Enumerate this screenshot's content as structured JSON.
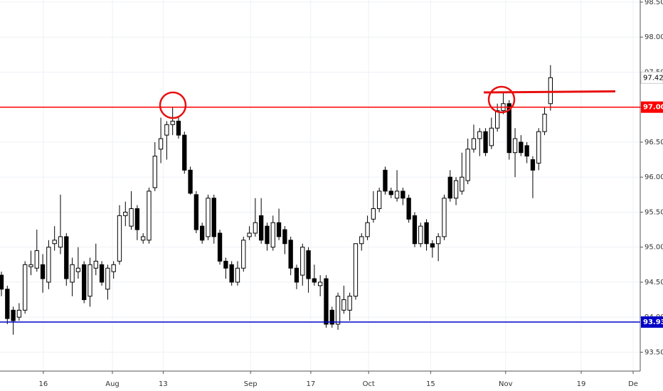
{
  "chart_data": {
    "type": "candlestick",
    "open": [
      94.6,
      94.4,
      94.1,
      94.0,
      94.1,
      94.72,
      94.7,
      94.75,
      94.5,
      95.05,
      95.0,
      95.15,
      94.5,
      94.65,
      94.75,
      94.3,
      94.7,
      94.75,
      94.4,
      94.65,
      94.8,
      95.45,
      95.3,
      95.55,
      95.1,
      95.1,
      95.85,
      96.4,
      96.6,
      96.75,
      96.8,
      96.6,
      96.1,
      95.75,
      95.3,
      95.15,
      95.7,
      95.2,
      94.8,
      94.75,
      94.5,
      94.7,
      95.15,
      95.2,
      95.45,
      95.3,
      95.0,
      95.35,
      95.25,
      95.1,
      94.7,
      94.6,
      94.95,
      94.55,
      94.45,
      94.55,
      94.1,
      93.9,
      94.1,
      94.1,
      94.3,
      95.05,
      95.15,
      95.4,
      95.55,
      96.1,
      95.8,
      95.7,
      95.8,
      95.7,
      95.45,
      95.05,
      95.35,
      95.05,
      95.05,
      95.15,
      96.0,
      95.7,
      95.8,
      95.95,
      96.4,
      96.55,
      96.65,
      96.45,
      96.7,
      96.95,
      97.05,
      96.35,
      96.5,
      96.45,
      96.25,
      96.2,
      96.65,
      97.05
    ],
    "high": [
      94.65,
      94.45,
      94.15,
      94.2,
      94.8,
      94.95,
      95.25,
      94.9,
      95.1,
      95.3,
      95.75,
      95.2,
      94.85,
      95.0,
      94.8,
      94.85,
      95.05,
      94.8,
      94.75,
      94.8,
      95.6,
      95.65,
      95.8,
      95.6,
      95.2,
      95.85,
      96.5,
      96.85,
      96.8,
      97.0,
      96.85,
      96.65,
      96.15,
      95.8,
      95.35,
      95.75,
      95.75,
      95.25,
      94.85,
      94.8,
      94.8,
      95.15,
      95.3,
      95.7,
      95.7,
      95.35,
      95.45,
      95.55,
      95.3,
      95.15,
      94.75,
      95.05,
      95.0,
      94.75,
      94.6,
      94.6,
      94.15,
      94.35,
      94.45,
      94.35,
      95.05,
      95.2,
      95.45,
      95.8,
      95.85,
      96.15,
      95.85,
      96.1,
      95.85,
      95.75,
      95.5,
      95.35,
      95.4,
      95.1,
      95.2,
      95.75,
      96.1,
      96.0,
      96.35,
      96.55,
      96.75,
      96.7,
      96.7,
      96.85,
      97.05,
      97.2,
      97.1,
      96.7,
      96.6,
      96.5,
      96.3,
      96.7,
      97.0,
      97.6
    ],
    "low": [
      94.3,
      93.9,
      93.75,
      93.95,
      94.05,
      94.6,
      94.65,
      94.35,
      94.4,
      94.95,
      94.9,
      94.45,
      94.3,
      94.55,
      94.2,
      94.15,
      94.6,
      94.45,
      94.25,
      94.55,
      94.75,
      95.3,
      95.25,
      95.1,
      95.05,
      95.05,
      95.8,
      96.2,
      96.25,
      96.6,
      96.55,
      96.05,
      95.75,
      95.2,
      95.05,
      95.1,
      95.05,
      94.75,
      94.55,
      94.45,
      94.45,
      94.65,
      95.1,
      95.15,
      95.05,
      94.95,
      94.95,
      95.1,
      94.9,
      94.6,
      94.4,
      94.45,
      94.35,
      94.45,
      94.3,
      93.85,
      93.85,
      93.82,
      94.05,
      93.95,
      94.25,
      94.95,
      95.1,
      95.35,
      95.5,
      95.75,
      95.7,
      95.65,
      95.6,
      95.35,
      95.0,
      95.0,
      94.95,
      94.85,
      94.8,
      95.1,
      95.65,
      95.6,
      95.75,
      95.9,
      96.35,
      96.3,
      96.3,
      96.4,
      96.65,
      96.9,
      96.25,
      96.0,
      96.3,
      96.2,
      95.7,
      96.1,
      96.6,
      96.95
    ],
    "close": [
      94.4,
      93.98,
      93.95,
      94.1,
      94.75,
      94.75,
      94.95,
      94.55,
      95.0,
      95.1,
      95.15,
      94.55,
      94.75,
      94.7,
      94.25,
      94.75,
      94.8,
      94.5,
      94.7,
      94.75,
      95.45,
      95.5,
      95.55,
      95.25,
      95.15,
      95.8,
      96.3,
      96.55,
      96.75,
      96.8,
      96.6,
      96.1,
      95.77,
      95.25,
      95.1,
      95.7,
      95.15,
      94.8,
      94.7,
      94.5,
      94.7,
      95.1,
      95.2,
      95.35,
      95.1,
      95.05,
      95.35,
      95.15,
      95.05,
      94.7,
      94.5,
      95.0,
      94.55,
      94.5,
      94.5,
      93.9,
      93.9,
      94.3,
      94.25,
      94.3,
      95.05,
      95.15,
      95.35,
      95.55,
      95.8,
      95.8,
      95.75,
      95.8,
      95.7,
      95.4,
      95.05,
      95.3,
      95.05,
      95.0,
      95.15,
      95.7,
      95.7,
      95.95,
      96.0,
      96.4,
      96.55,
      96.65,
      96.35,
      96.7,
      96.95,
      97.05,
      96.35,
      96.55,
      96.35,
      96.3,
      96.1,
      96.65,
      96.9,
      97.42
    ],
    "up_color": "#ffffff",
    "down_color": "#000000",
    "ylim": [
      93.23,
      98.53
    ],
    "yticks": [
      {
        "value": 93.5,
        "label": "93.50"
      },
      {
        "value": 94,
        "label": "94.00"
      },
      {
        "value": 94.5,
        "label": "94.50"
      },
      {
        "value": 95,
        "label": "95.00"
      },
      {
        "value": 95.5,
        "label": "95.50"
      },
      {
        "value": 96,
        "label": "96.00"
      },
      {
        "value": 96.5,
        "label": "96.50"
      },
      {
        "value": 97,
        "label": "97.00"
      },
      {
        "value": 97.5,
        "label": "97.50"
      },
      {
        "value": 98,
        "label": "98.00"
      },
      {
        "value": 98.5,
        "label": "98.50"
      }
    ],
    "xlim": [
      -0.24,
      108.2
    ],
    "xticks": [
      {
        "value": 7.1,
        "label": "16"
      },
      {
        "value": 18.8,
        "label": "Aug"
      },
      {
        "value": 27.4,
        "label": "13"
      },
      {
        "value": 42.2,
        "label": "Sep"
      },
      {
        "value": 52.4,
        "label": "17"
      },
      {
        "value": 62.2,
        "label": "Oct"
      },
      {
        "value": 72.7,
        "label": "15"
      },
      {
        "value": 85.4,
        "label": "Nov"
      },
      {
        "value": 98.2,
        "label": "19"
      },
      {
        "value": 107.0,
        "label": "De"
      }
    ],
    "grid": true,
    "levels": [
      {
        "value": 97,
        "label": "97.00",
        "color": "#ff0000"
      },
      {
        "value": 93.93,
        "label": "93.93",
        "color": "#0000c8"
      }
    ],
    "last_price": {
      "value": 97.42,
      "label": "97.42"
    }
  }
}
